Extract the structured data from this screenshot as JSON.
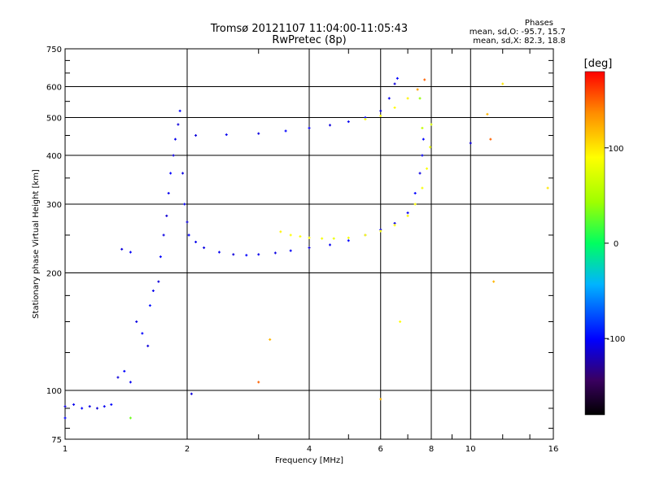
{
  "chart_data": {
    "type": "scatter",
    "title": "Tromsø 20121107 11:04:00-11:05:43",
    "subtitle": "RwPretec (8p)",
    "xlabel": "Frequency [MHz]",
    "ylabel": "Stationary phase Virtual Height [km]",
    "x_scale": "log",
    "y_scale": "log",
    "xlim": [
      1,
      16
    ],
    "ylim": [
      75,
      750
    ],
    "x_ticks": [
      1,
      2,
      4,
      6,
      8,
      10,
      16
    ],
    "x_tick_labels": [
      "1",
      "2",
      "4",
      "6",
      "8",
      "10",
      "16"
    ],
    "y_ticks": [
      75,
      100,
      200,
      300,
      400,
      500,
      600,
      750
    ],
    "y_tick_labels": [
      "75",
      "100",
      "200",
      "300",
      "400",
      "500",
      "600",
      "750"
    ],
    "grid": true,
    "phases_box": {
      "heading": "Phases",
      "line1": "mean, sd,O: -95.7, 15.7",
      "line2": "mean, sd,X:  82.3, 18.8"
    },
    "colorbar": {
      "title": "[deg]",
      "range": [
        -180,
        180
      ],
      "ticks": [
        100,
        0,
        -100
      ],
      "tick_labels": [
        "100",
        "0",
        "-100"
      ]
    },
    "series": [
      {
        "points": [
          [
            1.0,
            91,
            -110
          ],
          [
            1.05,
            92,
            -105
          ],
          [
            1.1,
            90,
            -100
          ],
          [
            1.15,
            91,
            -108
          ],
          [
            1.2,
            90,
            -112
          ],
          [
            1.25,
            91,
            -104
          ],
          [
            1.3,
            92,
            -98
          ],
          [
            1.35,
            108,
            -110
          ],
          [
            1.4,
            112,
            -100
          ],
          [
            1.45,
            105,
            -104
          ],
          [
            1.38,
            230,
            -110
          ],
          [
            1.45,
            226,
            -102
          ],
          [
            1.5,
            150,
            -108
          ],
          [
            1.55,
            140,
            -100
          ],
          [
            1.6,
            130,
            -110
          ],
          [
            1.62,
            165,
            -95
          ],
          [
            1.65,
            180,
            -105
          ],
          [
            1.7,
            190,
            -110
          ],
          [
            1.72,
            220,
            -100
          ],
          [
            1.75,
            250,
            -108
          ],
          [
            1.78,
            280,
            -112
          ],
          [
            1.8,
            320,
            -104
          ],
          [
            1.82,
            360,
            -100
          ],
          [
            1.85,
            400,
            -110
          ],
          [
            1.87,
            440,
            -105
          ],
          [
            1.9,
            480,
            -110
          ],
          [
            1.92,
            520,
            -100
          ],
          [
            1.95,
            360,
            -108
          ],
          [
            1.97,
            300,
            -104
          ],
          [
            2.0,
            270,
            -110
          ],
          [
            2.02,
            250,
            -100
          ],
          [
            2.1,
            240,
            -105
          ],
          [
            2.2,
            232,
            -108
          ],
          [
            2.4,
            226,
            -104
          ],
          [
            2.6,
            223,
            -110
          ],
          [
            2.8,
            222,
            -100
          ],
          [
            3.0,
            223,
            -105
          ],
          [
            3.3,
            225,
            -108
          ],
          [
            3.6,
            228,
            -102
          ],
          [
            4.0,
            232,
            -110
          ],
          [
            4.5,
            236,
            -104
          ],
          [
            5.0,
            242,
            -100
          ],
          [
            5.5,
            250,
            -108
          ],
          [
            6.0,
            258,
            -105
          ],
          [
            6.5,
            268,
            -110
          ],
          [
            7.0,
            285,
            -104
          ],
          [
            7.3,
            320,
            -100
          ],
          [
            7.5,
            360,
            -108
          ],
          [
            7.6,
            400,
            -105
          ],
          [
            7.65,
            440,
            -100
          ],
          [
            2.1,
            450,
            -110
          ],
          [
            2.5,
            452,
            -104
          ],
          [
            3.0,
            455,
            -108
          ],
          [
            3.5,
            462,
            -100
          ],
          [
            4.0,
            470,
            -105
          ],
          [
            4.5,
            478,
            -110
          ],
          [
            5.0,
            488,
            -104
          ],
          [
            5.5,
            500,
            -100
          ],
          [
            6.0,
            520,
            -108
          ],
          [
            6.3,
            560,
            -105
          ],
          [
            6.5,
            610,
            -110
          ],
          [
            6.6,
            630,
            -100
          ]
        ]
      },
      {
        "points": [
          [
            3.4,
            255,
            95
          ],
          [
            3.6,
            250,
            90
          ],
          [
            3.8,
            248,
            88
          ],
          [
            4.0,
            246,
            92
          ],
          [
            4.3,
            245,
            85
          ],
          [
            4.6,
            245,
            80
          ],
          [
            5.0,
            246,
            85
          ],
          [
            5.5,
            250,
            90
          ],
          [
            6.0,
            256,
            88
          ],
          [
            6.5,
            265,
            92
          ],
          [
            7.0,
            280,
            95
          ],
          [
            7.3,
            300,
            90
          ],
          [
            7.6,
            330,
            85
          ],
          [
            7.8,
            370,
            88
          ],
          [
            7.95,
            420,
            80
          ],
          [
            8.0,
            480,
            70
          ],
          [
            5.5,
            495,
            90
          ],
          [
            6.0,
            505,
            88
          ],
          [
            6.5,
            530,
            92
          ],
          [
            7.0,
            560,
            95
          ],
          [
            7.4,
            590,
            130
          ],
          [
            7.7,
            625,
            150
          ],
          [
            7.5,
            560,
            40
          ],
          [
            7.6,
            470,
            60
          ]
        ]
      }
    ],
    "stray_points": [
      [
        12.0,
        610,
        100
      ],
      [
        11.0,
        510,
        120
      ],
      [
        10.0,
        430,
        -110
      ],
      [
        11.2,
        440,
        150
      ],
      [
        15.5,
        330,
        100
      ],
      [
        11.4,
        190,
        120
      ],
      [
        3.2,
        135,
        120
      ],
      [
        3.0,
        105,
        150
      ],
      [
        6.0,
        95,
        120
      ],
      [
        6.7,
        150,
        90
      ],
      [
        2.05,
        98,
        -110
      ],
      [
        1.0,
        85,
        -100
      ],
      [
        1.45,
        85,
        30
      ]
    ]
  }
}
